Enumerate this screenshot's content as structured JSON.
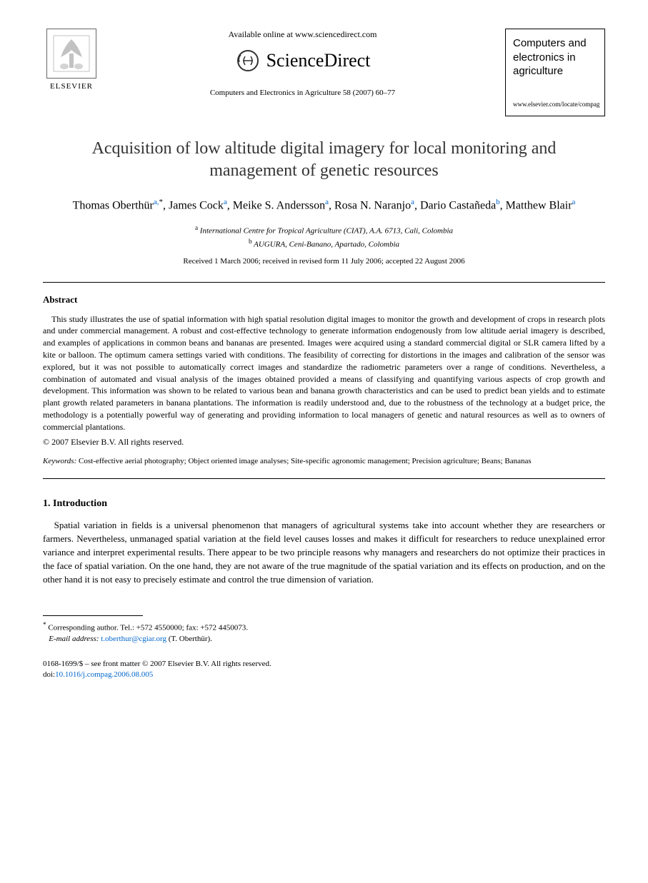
{
  "header": {
    "available_online": "Available online at www.sciencedirect.com",
    "sciencedirect": "ScienceDirect",
    "elsevier": "ELSEVIER",
    "citation": "Computers and Electronics in Agriculture 58 (2007) 60–77",
    "journal_name": "Computers and electronics in agriculture",
    "journal_url": "www.elsevier.com/locate/compag"
  },
  "title": "Acquisition of low altitude digital imagery for local monitoring and management of genetic resources",
  "authors_html": "Thomas Oberthür<sup>a,</sup><sup class='star'>*</sup>, James Cock<sup>a</sup>, Meike S. Andersson<sup>a</sup>, Rosa N. Naranjo<sup>a</sup>, Dario Castañeda<sup>b</sup>, Matthew Blair<sup>a</sup>",
  "affiliations": {
    "a": "International Centre for Tropical Agriculture (CIAT), A.A. 6713, Cali, Colombia",
    "b": "AUGURA, Ceni-Banano, Apartado, Colombia"
  },
  "dates": "Received 1 March 2006; received in revised form 11 July 2006; accepted 22 August 2006",
  "abstract": {
    "heading": "Abstract",
    "text": "This study illustrates the use of spatial information with high spatial resolution digital images to monitor the growth and development of crops in research plots and under commercial management. A robust and cost-effective technology to generate information endogenously from low altitude aerial imagery is described, and examples of applications in common beans and bananas are presented. Images were acquired using a standard commercial digital or SLR camera lifted by a kite or balloon. The optimum camera settings varied with conditions. The feasibility of correcting for distortions in the images and calibration of the sensor was explored, but it was not possible to automatically correct images and standardize the radiometric parameters over a range of conditions. Nevertheless, a combination of automated and visual analysis of the images obtained provided a means of classifying and quantifying various aspects of crop growth and development. This information was shown to be related to various bean and banana growth characteristics and can be used to predict bean yields and to estimate plant growth related parameters in banana plantations. The information is readily understood and, due to the robustness of the technology at a budget price, the methodology is a potentially powerful way of generating and providing information to local managers of genetic and natural resources as well as to owners of commercial plantations.",
    "copyright": "© 2007 Elsevier B.V. All rights reserved."
  },
  "keywords": {
    "label": "Keywords:",
    "text": "Cost-effective aerial photography; Object oriented image analyses; Site-specific agronomic management; Precision agriculture; Beans; Bananas"
  },
  "introduction": {
    "heading": "1.  Introduction",
    "text": "Spatial variation in fields is a universal phenomenon that managers of agricultural systems take into account whether they are researchers or farmers. Nevertheless, unmanaged spatial variation at the field level causes losses and makes it difficult for researchers to reduce unexplained error variance and interpret experimental results. There appear to be two principle reasons why managers and researchers do not optimize their practices in the face of spatial variation. On the one hand, they are not aware of the true magnitude of the spatial variation and its effects on production, and on the other hand it is not easy to precisely estimate and control the true dimension of variation."
  },
  "footnote": {
    "corresponding": "Corresponding author. Tel.: +572 4550000; fax: +572 4450073.",
    "email_label": "E-mail address:",
    "email": "t.oberthur@cgiar.org",
    "email_suffix": "(T. Oberthür)."
  },
  "footer": {
    "issn": "0168-1699/$ – see front matter © 2007 Elsevier B.V. All rights reserved.",
    "doi_label": "doi:",
    "doi": "10.1016/j.compag.2006.08.005"
  },
  "colors": {
    "link": "#0066cc",
    "text": "#000000",
    "background": "#ffffff"
  }
}
